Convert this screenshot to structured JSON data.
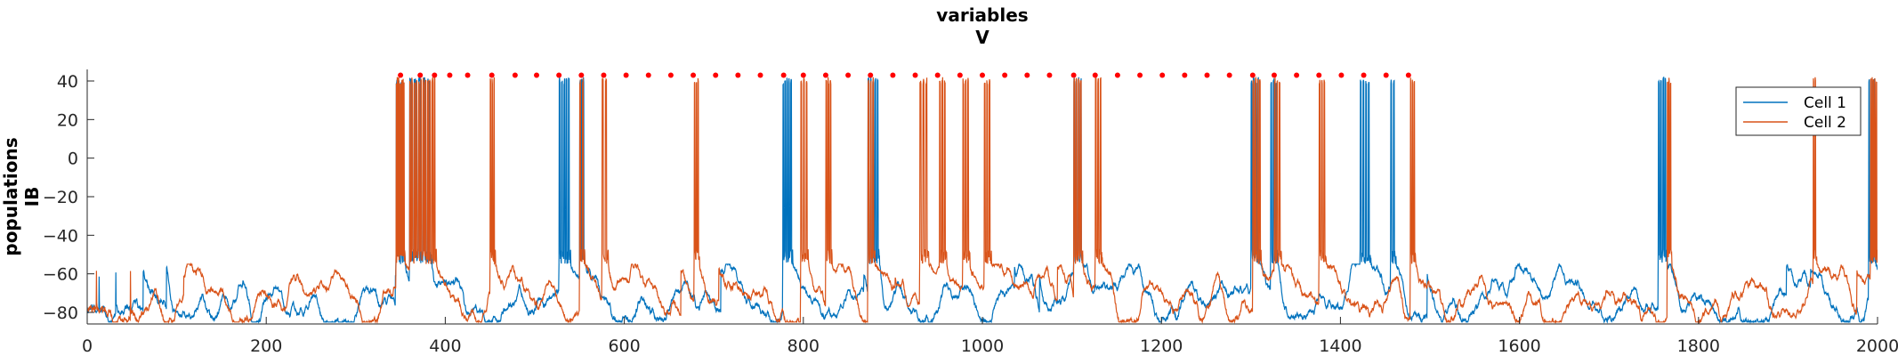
{
  "chart_data": {
    "type": "line",
    "title": [
      "variables",
      "V"
    ],
    "ylabel": [
      "populations",
      "IB"
    ],
    "xlabel": "",
    "xlim": [
      0,
      2000
    ],
    "ylim": [
      -86,
      46
    ],
    "xticks": [
      0,
      200,
      400,
      600,
      800,
      1000,
      1200,
      1400,
      1600,
      1800,
      2000
    ],
    "yticks": [
      -80,
      -60,
      -40,
      -20,
      0,
      20,
      40
    ],
    "grid": false,
    "legend_position": "top-right",
    "colors": {
      "Cell 1": "#0072BD",
      "Cell 2": "#D95319",
      "markers": "#FF0000"
    },
    "series": [
      {
        "name": "Cell 1",
        "baseline": -76,
        "bursts": [
          [
            345,
            355,
            4
          ],
          [
            360,
            385,
            5
          ],
          [
            527,
            540,
            5
          ],
          [
            550,
            556,
            3
          ],
          [
            777,
            788,
            5
          ],
          [
            872,
            885,
            5
          ],
          [
            1102,
            1112,
            4
          ],
          [
            1300,
            1310,
            4
          ],
          [
            1322,
            1330,
            3
          ],
          [
            1422,
            1434,
            4
          ],
          [
            1456,
            1462,
            2
          ],
          [
            1755,
            1765,
            4
          ],
          [
            1990,
            1998,
            4
          ]
        ]
      },
      {
        "name": "Cell 2",
        "baseline": -78,
        "bursts": [
          [
            345,
            355,
            8
          ],
          [
            360,
            390,
            12
          ],
          [
            450,
            456,
            3
          ],
          [
            550,
            556,
            2
          ],
          [
            575,
            582,
            2
          ],
          [
            678,
            684,
            3
          ],
          [
            797,
            806,
            3
          ],
          [
            825,
            832,
            3
          ],
          [
            872,
            880,
            3
          ],
          [
            930,
            940,
            3
          ],
          [
            952,
            960,
            3
          ],
          [
            978,
            986,
            3
          ],
          [
            1002,
            1010,
            3
          ],
          [
            1102,
            1112,
            4
          ],
          [
            1126,
            1134,
            3
          ],
          [
            1302,
            1312,
            4
          ],
          [
            1326,
            1334,
            3
          ],
          [
            1376,
            1384,
            3
          ],
          [
            1478,
            1484,
            3
          ],
          [
            1765,
            1770,
            3
          ],
          [
            1928,
            1932,
            2
          ],
          [
            1992,
            2000,
            5
          ]
        ]
      }
    ],
    "markers": {
      "y": 43,
      "x": [
        350,
        372,
        388,
        405,
        425,
        452,
        478,
        502,
        527,
        552,
        577,
        602,
        627,
        652,
        677,
        702,
        727,
        752,
        778,
        800,
        825,
        850,
        875,
        900,
        925,
        950,
        975,
        1000,
        1025,
        1050,
        1075,
        1102,
        1126,
        1151,
        1176,
        1201,
        1226,
        1251,
        1276,
        1302,
        1326,
        1351,
        1376,
        1401,
        1426,
        1451,
        1476
      ]
    },
    "legend": [
      "Cell 1",
      "Cell 2"
    ]
  }
}
